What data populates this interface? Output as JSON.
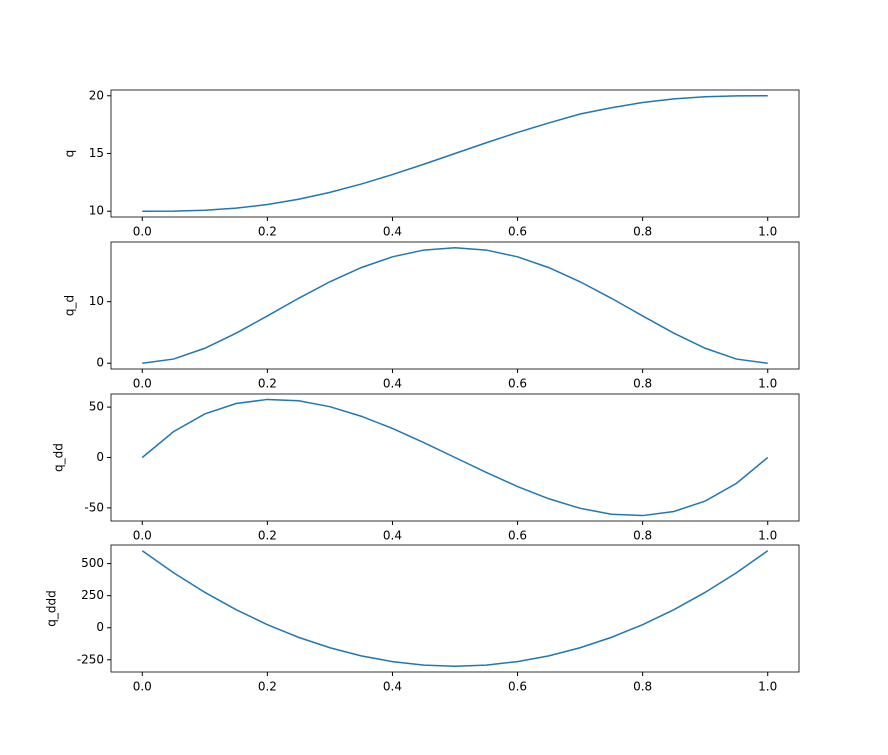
{
  "chart_data": [
    {
      "type": "line",
      "ylabel": "q",
      "color": "#1f77b4",
      "x": [
        0,
        0.05,
        0.1,
        0.15,
        0.2,
        0.25,
        0.3,
        0.35,
        0.4,
        0.45,
        0.5,
        0.55,
        0.6,
        0.65,
        0.7,
        0.75,
        0.8,
        0.85,
        0.9,
        0.95,
        1
      ],
      "values": [
        10,
        10.0116,
        10.0856,
        10.2661,
        10.5792,
        11.0352,
        11.6308,
        12.3517,
        13.1744,
        14.0688,
        15,
        15.9312,
        16.8256,
        17.6483,
        18.4208,
        18.9648,
        19.4208,
        19.7339,
        19.9144,
        19.9884,
        20
      ],
      "xlim": [
        -0.05,
        1.05
      ],
      "ylim": [
        9.5,
        20.5
      ],
      "xticks": [
        {
          "value": 0,
          "label": "0.0"
        },
        {
          "value": 0.2,
          "label": "0.2"
        },
        {
          "value": 0.4,
          "label": "0.4"
        },
        {
          "value": 0.6,
          "label": "0.6"
        },
        {
          "value": 0.8,
          "label": "0.8"
        },
        {
          "value": 1,
          "label": "1.0"
        }
      ],
      "yticks": [
        10,
        15,
        20
      ]
    },
    {
      "type": "line",
      "ylabel": "q_d",
      "color": "#1f77b4",
      "x": [
        0,
        0.05,
        0.1,
        0.15,
        0.2,
        0.25,
        0.3,
        0.35,
        0.4,
        0.45,
        0.5,
        0.55,
        0.6,
        0.65,
        0.7,
        0.75,
        0.8,
        0.85,
        0.9,
        0.95,
        1
      ],
      "values": [
        0,
        0.6769,
        2.43,
        4.8769,
        7.68,
        10.5469,
        13.23,
        15.5269,
        17.28,
        18.3769,
        18.75,
        18.3769,
        17.28,
        15.5269,
        13.23,
        10.5469,
        7.68,
        4.8769,
        2.43,
        0.6769,
        0
      ],
      "xlim": [
        -0.05,
        1.05
      ],
      "ylim": [
        -0.9375,
        19.6875
      ],
      "xticks": [
        {
          "value": 0,
          "label": "0.0"
        },
        {
          "value": 0.2,
          "label": "0.2"
        },
        {
          "value": 0.4,
          "label": "0.4"
        },
        {
          "value": 0.6,
          "label": "0.6"
        },
        {
          "value": 0.8,
          "label": "0.8"
        },
        {
          "value": 1,
          "label": "1.0"
        }
      ],
      "yticks": [
        0,
        10
      ]
    },
    {
      "type": "line",
      "ylabel": "q_dd",
      "color": "#1f77b4",
      "x": [
        0,
        0.05,
        0.1,
        0.15,
        0.2,
        0.25,
        0.3,
        0.35,
        0.4,
        0.45,
        0.5,
        0.55,
        0.6,
        0.65,
        0.7,
        0.75,
        0.8,
        0.85,
        0.9,
        0.95,
        1
      ],
      "values": [
        0,
        25.65,
        43.2,
        53.55,
        57.6,
        56.25,
        50.4,
        40.95,
        28.8,
        14.85,
        0,
        -14.85,
        -28.8,
        -40.95,
        -50.4,
        -56.25,
        -57.6,
        -53.55,
        -43.2,
        -25.65,
        0
      ],
      "xlim": [
        -0.05,
        1.05
      ],
      "ylim": [
        -63,
        63
      ],
      "xticks": [
        {
          "value": 0,
          "label": "0.0"
        },
        {
          "value": 0.2,
          "label": "0.2"
        },
        {
          "value": 0.4,
          "label": "0.4"
        },
        {
          "value": 0.6,
          "label": "0.6"
        },
        {
          "value": 0.8,
          "label": "0.8"
        },
        {
          "value": 1,
          "label": "1.0"
        }
      ],
      "yticks": [
        -50,
        0,
        50
      ]
    },
    {
      "type": "line",
      "ylabel": "q_ddd",
      "color": "#1f77b4",
      "x": [
        0,
        0.05,
        0.1,
        0.15,
        0.2,
        0.25,
        0.3,
        0.35,
        0.4,
        0.45,
        0.5,
        0.55,
        0.6,
        0.65,
        0.7,
        0.75,
        0.8,
        0.85,
        0.9,
        0.95,
        1
      ],
      "values": [
        600,
        429,
        276,
        141,
        24,
        -75,
        -156,
        -219,
        -264,
        -291,
        -300,
        -291,
        -264,
        -219,
        -156,
        -75,
        24,
        141,
        276,
        429,
        600
      ],
      "xlim": [
        -0.05,
        1.05
      ],
      "ylim": [
        -345,
        645
      ],
      "xticks": [
        {
          "value": 0,
          "label": "0.0"
        },
        {
          "value": 0.2,
          "label": "0.2"
        },
        {
          "value": 0.4,
          "label": "0.4"
        },
        {
          "value": 0.6,
          "label": "0.6"
        },
        {
          "value": 0.8,
          "label": "0.8"
        },
        {
          "value": 1,
          "label": "1.0"
        }
      ],
      "yticks": [
        -250,
        0,
        250,
        500
      ]
    }
  ]
}
